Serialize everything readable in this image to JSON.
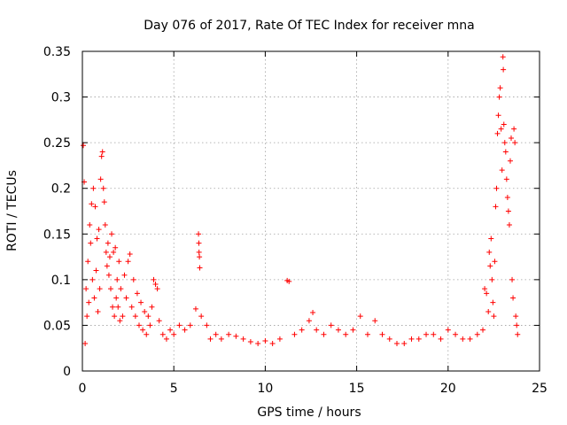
{
  "chart_data": {
    "type": "scatter",
    "title": "Day 076 of 2017, Rate Of TEC Index for receiver mna",
    "xlabel": "GPS time / hours",
    "ylabel": "ROTI / TECUs",
    "xlim": [
      0,
      25
    ],
    "ylim": [
      0,
      0.35
    ],
    "xticks": [
      0,
      5,
      10,
      15,
      20,
      25
    ],
    "yticks": [
      0,
      0.05,
      0.1,
      0.15,
      0.2,
      0.25,
      0.3,
      0.35
    ],
    "xtick_labels": [
      "0",
      "5",
      "10",
      "15",
      "20",
      "25"
    ],
    "ytick_labels": [
      "0",
      "0.05",
      "0.1",
      "0.15",
      "0.2",
      "0.25",
      "0.3",
      "0.35"
    ],
    "grid": true,
    "marker": "+",
    "color": "#ff0000",
    "series": [
      {
        "points": [
          [
            0.05,
            0.247
          ],
          [
            0.1,
            0.207
          ],
          [
            0.15,
            0.03
          ],
          [
            0.2,
            0.09
          ],
          [
            0.25,
            0.06
          ],
          [
            0.3,
            0.12
          ],
          [
            0.35,
            0.075
          ],
          [
            0.4,
            0.16
          ],
          [
            0.45,
            0.14
          ],
          [
            0.5,
            0.183
          ],
          [
            0.55,
            0.1
          ],
          [
            0.6,
            0.2
          ],
          [
            0.65,
            0.08
          ],
          [
            0.7,
            0.18
          ],
          [
            0.75,
            0.11
          ],
          [
            0.8,
            0.145
          ],
          [
            0.85,
            0.065
          ],
          [
            0.9,
            0.155
          ],
          [
            0.95,
            0.09
          ],
          [
            1.0,
            0.21
          ],
          [
            1.05,
            0.235
          ],
          [
            1.1,
            0.24
          ],
          [
            1.15,
            0.2
          ],
          [
            1.2,
            0.185
          ],
          [
            1.25,
            0.16
          ],
          [
            1.3,
            0.13
          ],
          [
            1.35,
            0.115
          ],
          [
            1.4,
            0.14
          ],
          [
            1.45,
            0.105
          ],
          [
            1.5,
            0.125
          ],
          [
            1.55,
            0.09
          ],
          [
            1.6,
            0.15
          ],
          [
            1.65,
            0.07
          ],
          [
            1.7,
            0.13
          ],
          [
            1.75,
            0.06
          ],
          [
            1.8,
            0.135
          ],
          [
            1.85,
            0.08
          ],
          [
            1.9,
            0.1
          ],
          [
            1.95,
            0.07
          ],
          [
            2.0,
            0.12
          ],
          [
            2.05,
            0.055
          ],
          [
            2.1,
            0.09
          ],
          [
            2.2,
            0.06
          ],
          [
            2.3,
            0.105
          ],
          [
            2.4,
            0.08
          ],
          [
            2.5,
            0.12
          ],
          [
            2.6,
            0.128
          ],
          [
            2.7,
            0.07
          ],
          [
            2.8,
            0.1
          ],
          [
            2.9,
            0.06
          ],
          [
            3.0,
            0.085
          ],
          [
            3.1,
            0.05
          ],
          [
            3.2,
            0.075
          ],
          [
            3.3,
            0.045
          ],
          [
            3.4,
            0.065
          ],
          [
            3.5,
            0.04
          ],
          [
            3.6,
            0.06
          ],
          [
            3.7,
            0.05
          ],
          [
            3.8,
            0.07
          ],
          [
            3.9,
            0.1
          ],
          [
            4.0,
            0.095
          ],
          [
            4.1,
            0.09
          ],
          [
            4.2,
            0.055
          ],
          [
            4.4,
            0.04
          ],
          [
            4.6,
            0.035
          ],
          [
            4.8,
            0.045
          ],
          [
            5.0,
            0.04
          ],
          [
            5.3,
            0.05
          ],
          [
            5.6,
            0.045
          ],
          [
            5.9,
            0.05
          ],
          [
            6.2,
            0.068
          ],
          [
            6.35,
            0.15
          ],
          [
            6.37,
            0.14
          ],
          [
            6.38,
            0.13
          ],
          [
            6.4,
            0.125
          ],
          [
            6.42,
            0.113
          ],
          [
            6.5,
            0.06
          ],
          [
            6.8,
            0.05
          ],
          [
            7.0,
            0.035
          ],
          [
            7.3,
            0.04
          ],
          [
            7.6,
            0.035
          ],
          [
            8.0,
            0.04
          ],
          [
            8.4,
            0.038
          ],
          [
            8.8,
            0.035
          ],
          [
            9.2,
            0.032
          ],
          [
            9.6,
            0.03
          ],
          [
            10.0,
            0.033
          ],
          [
            10.4,
            0.03
          ],
          [
            10.8,
            0.035
          ],
          [
            11.2,
            0.099
          ],
          [
            11.3,
            0.098
          ],
          [
            11.6,
            0.04
          ],
          [
            12.0,
            0.045
          ],
          [
            12.4,
            0.055
          ],
          [
            12.6,
            0.064
          ],
          [
            12.8,
            0.045
          ],
          [
            13.2,
            0.04
          ],
          [
            13.6,
            0.05
          ],
          [
            14.0,
            0.045
          ],
          [
            14.4,
            0.04
          ],
          [
            14.8,
            0.045
          ],
          [
            15.2,
            0.06
          ],
          [
            15.6,
            0.04
          ],
          [
            16.0,
            0.055
          ],
          [
            16.4,
            0.04
          ],
          [
            16.8,
            0.035
          ],
          [
            17.2,
            0.03
          ],
          [
            17.6,
            0.03
          ],
          [
            18.0,
            0.035
          ],
          [
            18.4,
            0.035
          ],
          [
            18.8,
            0.04
          ],
          [
            19.2,
            0.04
          ],
          [
            19.6,
            0.035
          ],
          [
            20.0,
            0.045
          ],
          [
            20.4,
            0.04
          ],
          [
            20.8,
            0.035
          ],
          [
            21.2,
            0.035
          ],
          [
            21.6,
            0.04
          ],
          [
            21.9,
            0.045
          ],
          [
            22.0,
            0.09
          ],
          [
            22.1,
            0.085
          ],
          [
            22.2,
            0.065
          ],
          [
            22.25,
            0.13
          ],
          [
            22.3,
            0.115
          ],
          [
            22.35,
            0.145
          ],
          [
            22.4,
            0.1
          ],
          [
            22.45,
            0.075
          ],
          [
            22.5,
            0.06
          ],
          [
            22.55,
            0.12
          ],
          [
            22.6,
            0.18
          ],
          [
            22.65,
            0.2
          ],
          [
            22.7,
            0.26
          ],
          [
            22.75,
            0.28
          ],
          [
            22.8,
            0.3
          ],
          [
            22.85,
            0.31
          ],
          [
            22.9,
            0.265
          ],
          [
            22.95,
            0.22
          ],
          [
            23.0,
            0.344
          ],
          [
            23.02,
            0.33
          ],
          [
            23.05,
            0.27
          ],
          [
            23.1,
            0.25
          ],
          [
            23.15,
            0.24
          ],
          [
            23.2,
            0.21
          ],
          [
            23.25,
            0.19
          ],
          [
            23.3,
            0.175
          ],
          [
            23.35,
            0.16
          ],
          [
            23.4,
            0.23
          ],
          [
            23.45,
            0.255
          ],
          [
            23.5,
            0.1
          ],
          [
            23.55,
            0.08
          ],
          [
            23.6,
            0.265
          ],
          [
            23.65,
            0.25
          ],
          [
            23.7,
            0.06
          ],
          [
            23.75,
            0.05
          ],
          [
            23.8,
            0.04
          ]
        ]
      }
    ]
  }
}
